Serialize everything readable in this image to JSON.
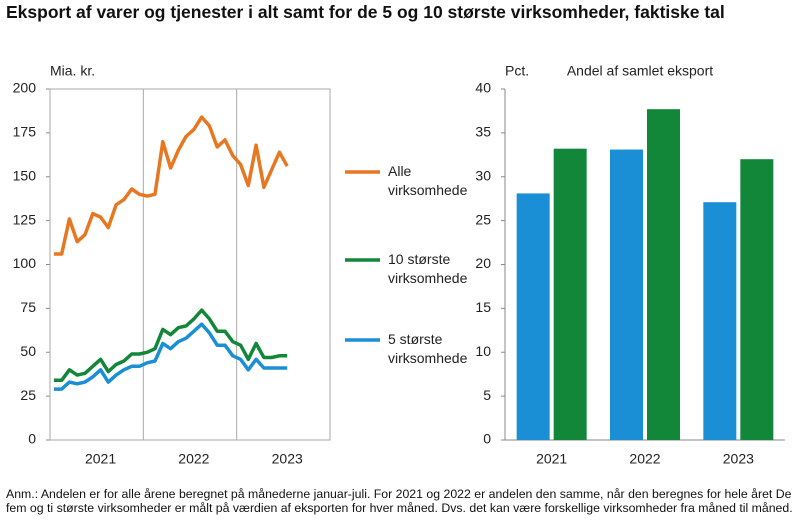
{
  "title": "Eksport af varer og tjenester i alt samt for de 5 og 10 største virksomheder, faktiske tal",
  "chart_data": [
    {
      "type": "line",
      "y_label": "Mia. kr.",
      "categories": [
        null,
        null,
        null,
        null,
        null,
        null,
        "2021",
        null,
        null,
        null,
        null,
        null,
        null,
        null,
        null,
        null,
        null,
        null,
        "2022",
        null,
        null,
        null,
        null,
        null,
        null,
        null,
        null,
        null,
        null,
        null,
        "2023"
      ],
      "series": [
        {
          "name": "Alle virksomheder",
          "color": "#e87722",
          "values": [
            106,
            106,
            126,
            113,
            117,
            129,
            127,
            121,
            134,
            137,
            143,
            140,
            139,
            140,
            170,
            155,
            165,
            173,
            177,
            184,
            179,
            167,
            171,
            162,
            157,
            145,
            168,
            144,
            154,
            164,
            156
          ]
        },
        {
          "name": "10 største virksomheder",
          "color": "#12873a",
          "values": [
            34,
            34,
            40,
            37,
            38,
            42,
            46,
            39,
            43,
            45,
            49,
            49,
            50,
            52,
            63,
            60,
            64,
            65,
            69,
            74,
            69,
            62,
            62,
            56,
            54,
            46,
            55,
            47,
            47,
            48,
            48
          ]
        },
        {
          "name": "5 største virksomheder",
          "color": "#1a8fd6",
          "values": [
            29,
            29,
            33,
            32,
            33,
            36,
            40,
            33,
            37,
            40,
            42,
            42,
            44,
            45,
            55,
            52,
            56,
            58,
            62,
            66,
            61,
            54,
            54,
            48,
            46,
            40,
            46,
            41,
            41,
            41,
            41
          ]
        }
      ],
      "ylim": [
        0,
        200
      ],
      "yticks": [
        0,
        25,
        50,
        75,
        100,
        125,
        150,
        175,
        200
      ],
      "grid": false
    },
    {
      "type": "bar",
      "title": "Andel af samlet eksport",
      "y_label": "Pct.",
      "categories": [
        "2021",
        "2022",
        "2023"
      ],
      "series": [
        {
          "color": "#1a8fd6",
          "values": [
            28.1,
            33.1,
            27.1
          ]
        },
        {
          "color": "#12873a",
          "values": [
            33.2,
            37.7,
            32.0
          ]
        }
      ],
      "ylim": [
        0,
        40
      ],
      "yticks": [
        0,
        5,
        10,
        15,
        20,
        25,
        30,
        35,
        40
      ],
      "grid": false
    }
  ],
  "note": "Anm.: Andelen er for alle årene beregnet på månederne januar-juli. For 2021 og 2022 er andelen den samme, når den beregnes for hele året De fem og ti største virksomheder er målt på værdien af eksporten for hver måned. Dvs. det kan være forskellige virksomheder fra måned til måned."
}
